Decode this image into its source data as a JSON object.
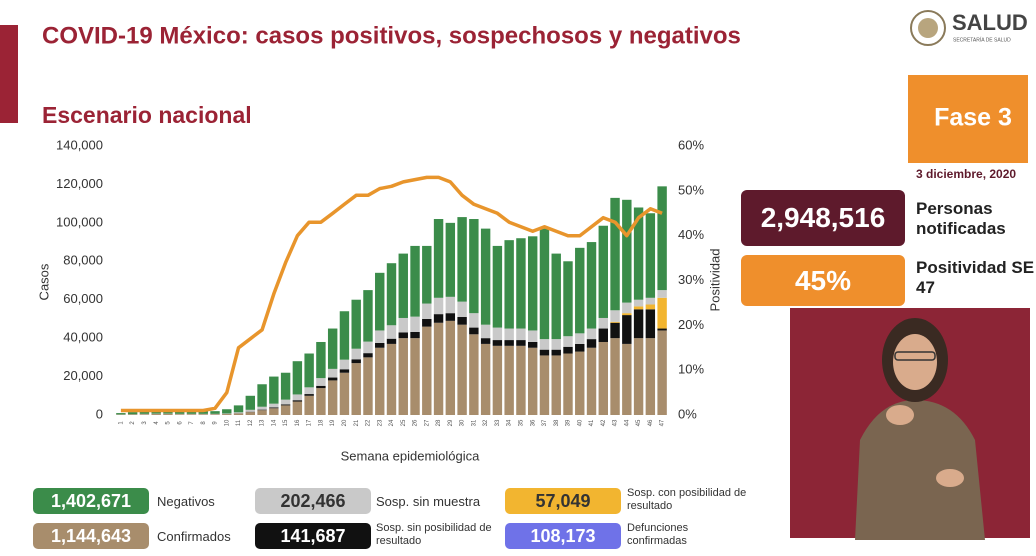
{
  "chart_data": {
    "type": "bar",
    "title": "COVID-19 México: casos positivos, sospechosos y negativos",
    "subtitle": "Escenario nacional",
    "x_label": "Semana epidemiológica",
    "y_label": "Casos",
    "y2_label": "Positividad",
    "categories": [
      "1",
      "2",
      "3",
      "4",
      "5",
      "6",
      "7",
      "8",
      "9",
      "10",
      "11",
      "12",
      "13",
      "14",
      "15",
      "16",
      "17",
      "18",
      "19",
      "20",
      "21",
      "22",
      "23",
      "24",
      "25",
      "26",
      "27",
      "28",
      "29",
      "30",
      "31",
      "32",
      "33",
      "34",
      "35",
      "36",
      "37",
      "38",
      "39",
      "40",
      "41",
      "42",
      "43",
      "44",
      "45",
      "46",
      "47"
    ],
    "ylim": [
      0,
      140000
    ],
    "yticks": [
      0,
      {
        "value": 20000,
        "label": "20,000"
      },
      {
        "value": 40000,
        "label": "40,000"
      },
      {
        "value": 60000,
        "label": "60,000"
      },
      {
        "value": 80000,
        "label": "80,000"
      },
      {
        "value": 100000,
        "label": "100,000"
      },
      {
        "value": 120000,
        "label": "120,000"
      },
      {
        "value": 140000,
        "label": "140,000"
      }
    ],
    "y2lim": [
      0,
      60
    ],
    "y2ticks": [
      {
        "value": 0,
        "label": "0%"
      },
      {
        "value": 10,
        "label": "10%"
      },
      {
        "value": 20,
        "label": "20%"
      },
      {
        "value": 30,
        "label": "30%"
      },
      {
        "value": 40,
        "label": "40%"
      },
      {
        "value": 50,
        "label": "50%"
      },
      {
        "value": 60,
        "label": "60%"
      }
    ],
    "grid": false,
    "series": [
      {
        "name": "Negativos",
        "color": "#3b8c4a",
        "total": "1,402,671",
        "values": [
          700,
          1100,
          1400,
          1800,
          1800,
          1400,
          1400,
          1400,
          1400,
          2200,
          3600,
          7300,
          11700,
          14100,
          14000,
          17300,
          17600,
          18800,
          21000,
          25200,
          25500,
          26800,
          30000,
          32300,
          33500,
          36800,
          30000,
          41000,
          38500,
          44000,
          49000,
          50000,
          42500,
          46000,
          47000,
          49000,
          57500,
          44500,
          39000,
          44500,
          45000,
          48000,
          58500,
          53500,
          48000,
          44000,
          54000
        ]
      },
      {
        "name": "Sosp. sin muestra",
        "color": "#c9c9c9",
        "total": "202,466",
        "values": [
          100,
          100,
          200,
          200,
          200,
          200,
          200,
          200,
          200,
          300,
          500,
          1000,
          1500,
          2000,
          2500,
          3000,
          3500,
          4000,
          4500,
          5000,
          5500,
          6000,
          6500,
          7000,
          7500,
          8000,
          8000,
          8500,
          8500,
          8000,
          7500,
          7000,
          6500,
          6000,
          6000,
          6000,
          5500,
          5500,
          5500,
          5500,
          5500,
          5500,
          6000,
          5500,
          3500,
          3500,
          4000
        ]
      },
      {
        "name": "Sosp. con posibilidad de resultado",
        "color": "#f2b530",
        "total": "57,049",
        "values": [
          0,
          0,
          0,
          0,
          0,
          0,
          0,
          0,
          0,
          0,
          0,
          0,
          0,
          0,
          0,
          0,
          0,
          0,
          0,
          0,
          0,
          0,
          0,
          0,
          0,
          0,
          0,
          0,
          0,
          0,
          0,
          0,
          0,
          0,
          0,
          0,
          0,
          0,
          0,
          0,
          0,
          0,
          500,
          1000,
          1500,
          2500,
          16000
        ]
      },
      {
        "name": "Confirmados",
        "color": "#a88d6c",
        "total": "1,144,643",
        "values": [
          200,
          300,
          400,
          500,
          500,
          400,
          400,
          400,
          400,
          500,
          800,
          1500,
          2500,
          3500,
          5000,
          7000,
          10000,
          14000,
          18000,
          22000,
          27000,
          30000,
          35000,
          37000,
          40000,
          40000,
          46000,
          48000,
          49000,
          47000,
          42000,
          37000,
          36000,
          36000,
          36000,
          35000,
          31000,
          31000,
          32000,
          33000,
          35000,
          38000,
          40000,
          37000,
          40000,
          40000,
          44000
        ]
      },
      {
        "name": "Sosp. sin posibilidad de resultado",
        "color": "#111111",
        "total": "141,687",
        "values": [
          0,
          0,
          0,
          0,
          0,
          0,
          0,
          0,
          0,
          0,
          100,
          200,
          300,
          400,
          500,
          700,
          900,
          1200,
          1500,
          1800,
          2000,
          2200,
          2500,
          2700,
          3000,
          3200,
          4000,
          4500,
          4000,
          4000,
          3500,
          3000,
          3000,
          3000,
          3000,
          3000,
          3000,
          3000,
          3500,
          4000,
          4500,
          7000,
          8000,
          15000,
          15000,
          15000,
          1000
        ]
      },
      {
        "name": "Positividad",
        "type": "line",
        "axis": "y2",
        "color": "#e8952c",
        "values": [
          1,
          1,
          1,
          1,
          1,
          1,
          1,
          1,
          1.5,
          5,
          15,
          17,
          19,
          27,
          34,
          40,
          43,
          43,
          45,
          47,
          49,
          49,
          50.5,
          51,
          52,
          52.5,
          53,
          53,
          52,
          49,
          47,
          46,
          45,
          43,
          42,
          41,
          42,
          41,
          40,
          40,
          42,
          44,
          43,
          40,
          44,
          46,
          45
        ]
      }
    ],
    "other_totals": [
      {
        "name": "Defunciones confirmadas",
        "color": "#6f72e8",
        "total": "108,173"
      }
    ]
  },
  "side": {
    "logo": "SALUD",
    "logo_sub": "SECRETARÍA DE SALUD",
    "phase": "Fase 3",
    "date": "3 diciembre, 2020",
    "stats": [
      {
        "value": "2,948,516",
        "label": "Personas notificadas",
        "color": "#5e1a2c"
      },
      {
        "value": "45%",
        "label": "Positividad SE 47",
        "color": "#ef8f2c"
      }
    ]
  }
}
